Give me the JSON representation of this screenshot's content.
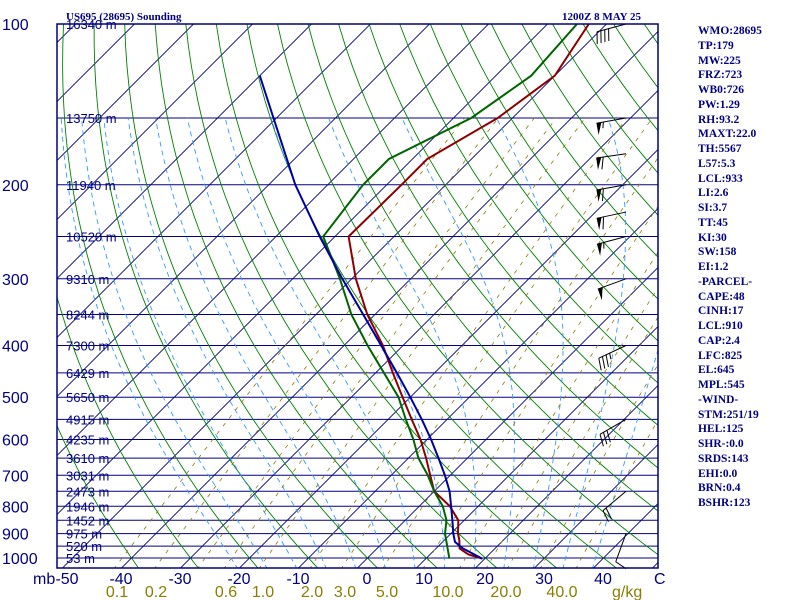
{
  "title": {
    "station": "US695 (28695) Sounding",
    "time": "1200Z  8 MAY 25"
  },
  "indices": [
    "WMO:28695",
    "TP:179",
    "MW:225",
    "FRZ:723",
    "WB0:726",
    "PW:1.29",
    "RH:93.2",
    "MAXT:22.0",
    "TH:5567",
    "L57:5.3",
    "LCL:933",
    "LI:2.6",
    "SI:3.7",
    "TT:45",
    "KI:30",
    "SW:158",
    "EI:1.2",
    "-PARCEL-",
    "CAPE:48",
    "CINH:17",
    "LCL:910",
    "CAP:2.4",
    "LFC:825",
    "EL:645",
    "MPL:545",
    "-WIND-",
    "STM:251/19",
    "HEL:125",
    "SHR-:0.0",
    "SRDS:143",
    "EHI:0.0",
    "BRN:0.4",
    "BSHR:123"
  ],
  "colors": {
    "frame": "#000080",
    "isobar": "#000080",
    "isotherm": "#000080",
    "dry_adiabat": "#008000",
    "moist_adiabat": "#3399ff",
    "mixing_ratio": "#8b7d00",
    "temperature": "#8b0000",
    "dewpoint": "#006400",
    "parcel": "#0000a0",
    "wind_barb": "#000000"
  },
  "chart_data": {
    "type": "skew-t log-p",
    "x_axis": {
      "label": "C",
      "ticks": [
        -50,
        -40,
        -30,
        -20,
        -10,
        0,
        10,
        20,
        30,
        40
      ],
      "tick_labels": [
        "-50",
        "-40",
        "-30",
        "-20",
        "-10",
        "0",
        "10",
        "20",
        "30",
        "40"
      ],
      "prefix": "mb"
    },
    "y_axis": {
      "scale": "log",
      "range": [
        1000,
        100
      ],
      "pressure_labels": [
        100,
        200,
        300,
        400,
        500,
        600,
        700,
        800,
        900,
        1000
      ]
    },
    "height_labels": [
      {
        "p": 100,
        "text": "16340 m"
      },
      {
        "p": 150,
        "text": "13750 m"
      },
      {
        "p": 200,
        "text": "11940 m"
      },
      {
        "p": 250,
        "text": "10520 m"
      },
      {
        "p": 300,
        "text": "9310 m"
      },
      {
        "p": 350,
        "text": "8244 m"
      },
      {
        "p": 400,
        "text": "7300 m"
      },
      {
        "p": 450,
        "text": "6429 m"
      },
      {
        "p": 500,
        "text": "5650 m"
      },
      {
        "p": 550,
        "text": "4915 m"
      },
      {
        "p": 600,
        "text": "4235 m"
      },
      {
        "p": 650,
        "text": "3610 m"
      },
      {
        "p": 700,
        "text": "3031 m"
      },
      {
        "p": 750,
        "text": "2473 m"
      },
      {
        "p": 800,
        "text": "1946 m"
      },
      {
        "p": 850,
        "text": "1452 m"
      },
      {
        "p": 900,
        "text": "975 m"
      },
      {
        "p": 950,
        "text": "520 m"
      },
      {
        "p": 1000,
        "text": "53 m"
      }
    ],
    "mixing_ratio": {
      "unit": "g/kg",
      "values": [
        0.1,
        0.2,
        0.6,
        1.0,
        2.0,
        3.0,
        5.0,
        10.0,
        20.0,
        40.0
      ],
      "labels": [
        "0.1",
        "0.2",
        "0.6",
        "1.0",
        "2.0",
        "3.0",
        "5.0",
        "10.0",
        "20.0",
        "40.0"
      ]
    },
    "series": [
      {
        "key": "temperature",
        "points": [
          {
            "p": 1003,
            "t": 19.6
          },
          {
            "p": 985,
            "t": 16.5
          },
          {
            "p": 960,
            "t": 14.0
          },
          {
            "p": 925,
            "t": 12.5
          },
          {
            "p": 900,
            "t": 11.2
          },
          {
            "p": 850,
            "t": 9.0
          },
          {
            "p": 800,
            "t": 5.2
          },
          {
            "p": 750,
            "t": 0.0
          },
          {
            "p": 700,
            "t": -3.4
          },
          {
            "p": 650,
            "t": -7.0
          },
          {
            "p": 600,
            "t": -11.1
          },
          {
            "p": 550,
            "t": -16.0
          },
          {
            "p": 500,
            "t": -21.3
          },
          {
            "p": 450,
            "t": -27.1
          },
          {
            "p": 400,
            "t": -33.4
          },
          {
            "p": 350,
            "t": -41.3
          },
          {
            "p": 300,
            "t": -49.3
          },
          {
            "p": 250,
            "t": -57.7
          },
          {
            "p": 200,
            "t": -57.5
          },
          {
            "p": 179,
            "t": -57.5
          },
          {
            "p": 150,
            "t": -52.5
          },
          {
            "p": 125,
            "t": -50.0
          },
          {
            "p": 100,
            "t": -53.0
          }
        ]
      },
      {
        "key": "dewpoint",
        "points": [
          {
            "p": 1003,
            "t": 14.0
          },
          {
            "p": 950,
            "t": 11.5
          },
          {
            "p": 900,
            "t": 9.0
          },
          {
            "p": 850,
            "t": 7.0
          },
          {
            "p": 800,
            "t": 4.0
          },
          {
            "p": 750,
            "t": 0.0
          },
          {
            "p": 700,
            "t": -3.8
          },
          {
            "p": 650,
            "t": -8.3
          },
          {
            "p": 600,
            "t": -12.3
          },
          {
            "p": 550,
            "t": -17.0
          },
          {
            "p": 500,
            "t": -22.0
          },
          {
            "p": 450,
            "t": -28.6
          },
          {
            "p": 400,
            "t": -36.0
          },
          {
            "p": 350,
            "t": -44.0
          },
          {
            "p": 300,
            "t": -52.0
          },
          {
            "p": 250,
            "t": -62.0
          },
          {
            "p": 200,
            "t": -64.0
          },
          {
            "p": 179,
            "t": -64.0
          },
          {
            "p": 150,
            "t": -57.0
          },
          {
            "p": 125,
            "t": -54.0
          },
          {
            "p": 100,
            "t": -55.0
          }
        ]
      },
      {
        "key": "parcel",
        "points": [
          {
            "p": 1003,
            "t": 19.6
          },
          {
            "p": 960,
            "t": 14.6
          },
          {
            "p": 933,
            "t": 12.1
          },
          {
            "p": 900,
            "t": 10.4
          },
          {
            "p": 850,
            "t": 8.0
          },
          {
            "p": 800,
            "t": 5.4
          },
          {
            "p": 750,
            "t": 2.6
          },
          {
            "p": 700,
            "t": -0.9
          },
          {
            "p": 650,
            "t": -4.9
          },
          {
            "p": 600,
            "t": -9.3
          },
          {
            "p": 550,
            "t": -14.3
          },
          {
            "p": 500,
            "t": -20.0
          },
          {
            "p": 450,
            "t": -26.4
          },
          {
            "p": 400,
            "t": -33.7
          },
          {
            "p": 350,
            "t": -42.0
          },
          {
            "p": 300,
            "t": -51.6
          },
          {
            "p": 250,
            "t": -62.6
          },
          {
            "p": 200,
            "t": -75.5
          },
          {
            "p": 150,
            "t": -90.5
          },
          {
            "p": 125,
            "t": -100.0
          }
        ]
      }
    ],
    "wind_barbs": [
      {
        "p": 100,
        "dir": 255,
        "spd": 40
      },
      {
        "p": 150,
        "dir": 260,
        "spd": 55
      },
      {
        "p": 175,
        "dir": 262,
        "spd": 60
      },
      {
        "p": 200,
        "dir": 260,
        "spd": 58
      },
      {
        "p": 225,
        "dir": 258,
        "spd": 62
      },
      {
        "p": 250,
        "dir": 255,
        "spd": 55
      },
      {
        "p": 300,
        "dir": 250,
        "spd": 50
      },
      {
        "p": 400,
        "dir": 245,
        "spd": 35
      },
      {
        "p": 550,
        "dir": 240,
        "spd": 30
      },
      {
        "p": 750,
        "dir": 230,
        "spd": 20
      },
      {
        "p": 900,
        "dir": 200,
        "spd": 10
      }
    ]
  }
}
